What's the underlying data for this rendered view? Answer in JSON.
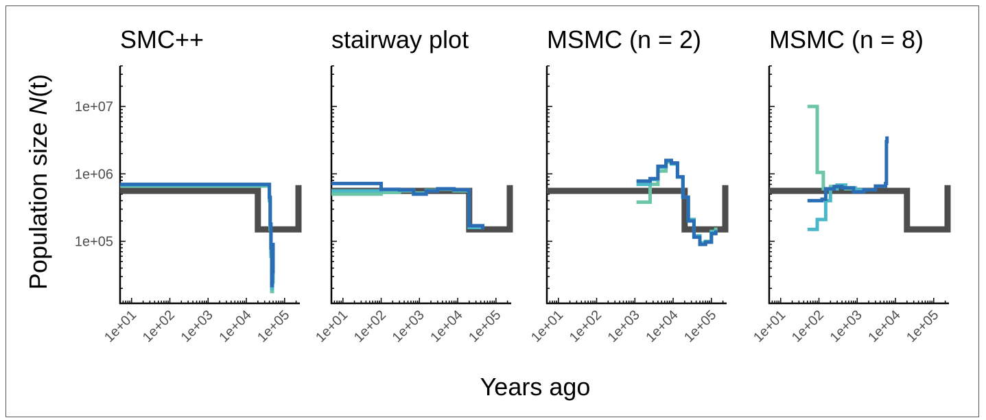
{
  "figure": {
    "ylabel": "Population size N(t)",
    "ylabel_prefix": "Population size ",
    "ylabel_italic": "N",
    "ylabel_suffix": "(t)",
    "xlabel": "Years ago"
  },
  "colors": {
    "truth": "#4d4d4d",
    "series": [
      "#6cc5a4",
      "#4bb8c9",
      "#2a6db5"
    ]
  },
  "chart_data": [
    {
      "type": "line",
      "title": "SMC++",
      "xscale": "log",
      "yscale": "log",
      "xlim": [
        5,
        250000
      ],
      "ylim": [
        12000,
        40000000
      ],
      "xticks": [
        "1e+01",
        "1e+02",
        "1e+03",
        "1e+04",
        "1e+05"
      ],
      "yticks": [
        "1e+05",
        "1e+06",
        "1e+07"
      ],
      "series": [
        {
          "role": "truth",
          "color": "#4d4d4d",
          "points": [
            [
              5,
              560000
            ],
            [
              20000,
              560000
            ],
            [
              20000,
              150000
            ],
            [
              230000,
              150000
            ],
            [
              230000,
              680000
            ]
          ]
        },
        {
          "color": "#6cc5a4",
          "points": [
            [
              5,
              660000
            ],
            [
              38000,
              660000
            ],
            [
              40000,
              400000
            ],
            [
              42000,
              150000
            ],
            [
              44000,
              60000
            ],
            [
              46000,
              18000
            ],
            [
              48000,
              25000
            ],
            [
              50000,
              90000
            ]
          ]
        },
        {
          "color": "#4bb8c9",
          "points": [
            [
              5,
              680000
            ],
            [
              38000,
              680000
            ],
            [
              40000,
              420000
            ],
            [
              42000,
              160000
            ],
            [
              44000,
              70000
            ],
            [
              46000,
              20000
            ],
            [
              48000,
              30000
            ],
            [
              50000,
              85000
            ]
          ]
        },
        {
          "color": "#2a6db5",
          "points": [
            [
              5,
              700000
            ],
            [
              38000,
              700000
            ],
            [
              40000,
              450000
            ],
            [
              42000,
              180000
            ],
            [
              44000,
              80000
            ],
            [
              46000,
              22000
            ],
            [
              48000,
              35000
            ],
            [
              50000,
              95000
            ]
          ]
        }
      ]
    },
    {
      "type": "line",
      "title": "stairway plot",
      "xscale": "log",
      "yscale": "log",
      "xlim": [
        5,
        250000
      ],
      "ylim": [
        12000,
        40000000
      ],
      "xticks": [
        "1e+01",
        "1e+02",
        "1e+03",
        "1e+04",
        "1e+05"
      ],
      "yticks": [
        "1e+05",
        "1e+06",
        "1e+07"
      ],
      "series": [
        {
          "role": "truth",
          "color": "#4d4d4d",
          "points": [
            [
              5,
              560000
            ],
            [
              20000,
              560000
            ],
            [
              20000,
              150000
            ],
            [
              230000,
              150000
            ],
            [
              230000,
              680000
            ]
          ]
        },
        {
          "color": "#6cc5a4",
          "points": [
            [
              5,
              500000
            ],
            [
              100,
              530000
            ],
            [
              300,
              560000
            ],
            [
              700,
              520000
            ],
            [
              1500,
              570000
            ],
            [
              3000,
              590000
            ],
            [
              8000,
              560000
            ],
            [
              19000,
              560000
            ],
            [
              20000,
              160000
            ],
            [
              45000,
              150000
            ]
          ]
        },
        {
          "color": "#4bb8c9",
          "points": [
            [
              5,
              560000
            ],
            [
              100,
              580000
            ],
            [
              300,
              570000
            ],
            [
              700,
              510000
            ],
            [
              1500,
              560000
            ],
            [
              3000,
              600000
            ],
            [
              8000,
              580000
            ],
            [
              19000,
              570000
            ],
            [
              20000,
              160000
            ],
            [
              45000,
              152000
            ]
          ]
        },
        {
          "color": "#2a6db5",
          "points": [
            [
              5,
              720000
            ],
            [
              95,
              720000
            ],
            [
              100,
              590000
            ],
            [
              300,
              580000
            ],
            [
              700,
              500000
            ],
            [
              1500,
              560000
            ],
            [
              3000,
              600000
            ],
            [
              8000,
              580000
            ],
            [
              19000,
              570000
            ],
            [
              20000,
              170000
            ],
            [
              45000,
              150000
            ]
          ]
        }
      ]
    },
    {
      "type": "line",
      "title": "MSMC (n = 2)",
      "xscale": "log",
      "yscale": "log",
      "xlim": [
        5,
        250000
      ],
      "ylim": [
        12000,
        40000000
      ],
      "xticks": [
        "1e+01",
        "1e+02",
        "1e+03",
        "1e+04",
        "1e+05"
      ],
      "yticks": [
        "1e+05",
        "1e+06",
        "1e+07"
      ],
      "series": [
        {
          "role": "truth",
          "color": "#4d4d4d",
          "points": [
            [
              5,
              560000
            ],
            [
              20000,
              560000
            ],
            [
              20000,
              150000
            ],
            [
              230000,
              150000
            ],
            [
              230000,
              680000
            ]
          ]
        },
        {
          "color": "#6cc5a4",
          "points": [
            [
              1100,
              380000
            ],
            [
              1800,
              380000
            ],
            [
              2500,
              700000
            ],
            [
              4000,
              1100000
            ],
            [
              6500,
              1500000
            ],
            [
              9000,
              1400000
            ],
            [
              13000,
              900000
            ],
            [
              18000,
              450000
            ],
            [
              25000,
              210000
            ],
            [
              35000,
              120000
            ],
            [
              50000,
              95000
            ],
            [
              70000,
              100000
            ],
            [
              100000,
              140000
            ],
            [
              130000,
              160000
            ]
          ]
        },
        {
          "color": "#4bb8c9",
          "points": [
            [
              1100,
              700000
            ],
            [
              1800,
              700000
            ],
            [
              2500,
              820000
            ],
            [
              4000,
              1250000
            ],
            [
              6500,
              1550000
            ],
            [
              9000,
              1400000
            ],
            [
              13000,
              900000
            ],
            [
              18000,
              450000
            ],
            [
              25000,
              210000
            ],
            [
              35000,
              120000
            ],
            [
              50000,
              92000
            ],
            [
              70000,
              98000
            ],
            [
              100000,
              135000
            ],
            [
              130000,
              150000
            ]
          ]
        },
        {
          "color": "#2a6db5",
          "points": [
            [
              1100,
              780000
            ],
            [
              1800,
              780000
            ],
            [
              2500,
              850000
            ],
            [
              4000,
              1300000
            ],
            [
              6500,
              1580000
            ],
            [
              9000,
              1450000
            ],
            [
              13000,
              900000
            ],
            [
              18000,
              450000
            ],
            [
              25000,
              200000
            ],
            [
              35000,
              115000
            ],
            [
              50000,
              90000
            ],
            [
              70000,
              97000
            ],
            [
              100000,
              130000
            ],
            [
              130000,
              145000
            ]
          ]
        }
      ]
    },
    {
      "type": "line",
      "title": "MSMC (n = 8)",
      "xscale": "log",
      "yscale": "log",
      "xlim": [
        5,
        250000
      ],
      "ylim": [
        12000,
        40000000
      ],
      "xticks": [
        "1e+01",
        "1e+02",
        "1e+03",
        "1e+04",
        "1e+05"
      ],
      "yticks": [
        "1e+05",
        "1e+06",
        "1e+07"
      ],
      "series": [
        {
          "role": "truth",
          "color": "#4d4d4d",
          "points": [
            [
              5,
              560000
            ],
            [
              20000,
              560000
            ],
            [
              20000,
              150000
            ],
            [
              230000,
              150000
            ],
            [
              230000,
              680000
            ]
          ]
        },
        {
          "color": "#6cc5a4",
          "points": [
            [
              50,
              10000000
            ],
            [
              85,
              10000000
            ],
            [
              90,
              1050000
            ],
            [
              120,
              1050000
            ],
            [
              130,
              600000
            ],
            [
              200,
              650000
            ],
            [
              300,
              680000
            ],
            [
              500,
              600000
            ],
            [
              900,
              570000
            ],
            [
              1500,
              600000
            ]
          ]
        },
        {
          "color": "#4bb8c9",
          "points": [
            [
              50,
              150000
            ],
            [
              85,
              150000
            ],
            [
              90,
              210000
            ],
            [
              140,
              210000
            ],
            [
              150,
              400000
            ],
            [
              200,
              600000
            ],
            [
              300,
              680000
            ],
            [
              500,
              620000
            ],
            [
              900,
              580000
            ],
            [
              1500,
              610000
            ]
          ]
        },
        {
          "color": "#2a6db5",
          "points": [
            [
              50,
              400000
            ],
            [
              90,
              400000
            ],
            [
              120,
              420000
            ],
            [
              150,
              600000
            ],
            [
              250,
              650000
            ],
            [
              400,
              620000
            ],
            [
              800,
              540000
            ],
            [
              1500,
              580000
            ],
            [
              3000,
              660000
            ],
            [
              5500,
              720000
            ],
            [
              5800,
              3000000
            ],
            [
              6000,
              3600000
            ]
          ]
        }
      ]
    }
  ]
}
